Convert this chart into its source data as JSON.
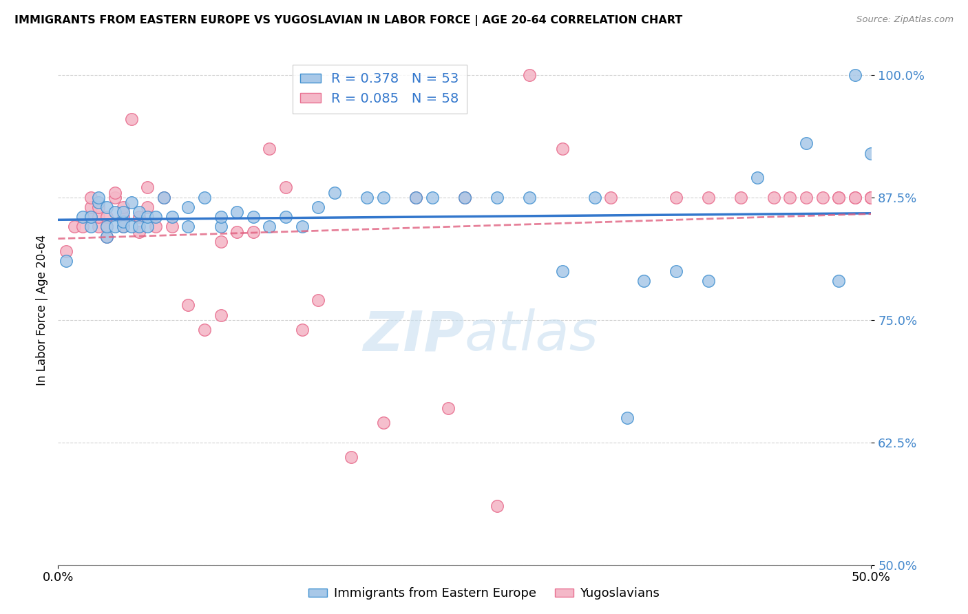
{
  "title": "IMMIGRANTS FROM EASTERN EUROPE VS YUGOSLAVIAN IN LABOR FORCE | AGE 20-64 CORRELATION CHART",
  "source": "Source: ZipAtlas.com",
  "ylabel": "In Labor Force | Age 20-64",
  "xlim": [
    0.0,
    0.5
  ],
  "ylim": [
    0.5,
    1.02
  ],
  "yticks": [
    0.5,
    0.625,
    0.75,
    0.875,
    1.0
  ],
  "ytick_labels": [
    "50.0%",
    "62.5%",
    "75.0%",
    "87.5%",
    "100.0%"
  ],
  "xtick_positions": [
    0.0,
    0.5
  ],
  "xtick_labels": [
    "0.0%",
    "50.0%"
  ],
  "blue_R": "0.378",
  "blue_N": "53",
  "pink_R": "0.085",
  "pink_N": "58",
  "blue_fill": "#a8c8e8",
  "pink_fill": "#f4b8c8",
  "blue_edge": "#4090d0",
  "pink_edge": "#e87090",
  "blue_line_color": "#3377cc",
  "pink_line_color": "#e06080",
  "watermark_color": "#c8dff0",
  "blue_x": [
    0.005,
    0.015,
    0.02,
    0.02,
    0.025,
    0.025,
    0.03,
    0.03,
    0.03,
    0.035,
    0.035,
    0.04,
    0.04,
    0.04,
    0.045,
    0.045,
    0.05,
    0.05,
    0.055,
    0.055,
    0.06,
    0.065,
    0.07,
    0.08,
    0.08,
    0.09,
    0.1,
    0.1,
    0.11,
    0.12,
    0.13,
    0.14,
    0.15,
    0.16,
    0.17,
    0.19,
    0.2,
    0.22,
    0.23,
    0.25,
    0.27,
    0.29,
    0.31,
    0.33,
    0.35,
    0.36,
    0.38,
    0.4,
    0.43,
    0.46,
    0.48,
    0.49,
    0.5
  ],
  "blue_y": [
    0.81,
    0.855,
    0.845,
    0.855,
    0.87,
    0.875,
    0.835,
    0.845,
    0.865,
    0.845,
    0.86,
    0.845,
    0.85,
    0.86,
    0.845,
    0.87,
    0.845,
    0.86,
    0.845,
    0.855,
    0.855,
    0.875,
    0.855,
    0.845,
    0.865,
    0.875,
    0.845,
    0.855,
    0.86,
    0.855,
    0.845,
    0.855,
    0.845,
    0.865,
    0.88,
    0.875,
    0.875,
    0.875,
    0.875,
    0.875,
    0.875,
    0.875,
    0.8,
    0.875,
    0.65,
    0.79,
    0.8,
    0.79,
    0.895,
    0.93,
    0.79,
    1.0,
    0.92
  ],
  "pink_x": [
    0.005,
    0.01,
    0.015,
    0.02,
    0.02,
    0.02,
    0.025,
    0.025,
    0.025,
    0.03,
    0.03,
    0.03,
    0.035,
    0.035,
    0.04,
    0.04,
    0.04,
    0.045,
    0.05,
    0.05,
    0.055,
    0.055,
    0.06,
    0.065,
    0.07,
    0.08,
    0.09,
    0.1,
    0.1,
    0.11,
    0.12,
    0.13,
    0.14,
    0.15,
    0.16,
    0.18,
    0.2,
    0.22,
    0.24,
    0.25,
    0.27,
    0.29,
    0.31,
    0.34,
    0.38,
    0.4,
    0.42,
    0.44,
    0.45,
    0.46,
    0.47,
    0.48,
    0.48,
    0.49,
    0.49,
    0.5,
    0.5,
    0.5
  ],
  "pink_y": [
    0.82,
    0.845,
    0.845,
    0.855,
    0.865,
    0.875,
    0.845,
    0.855,
    0.865,
    0.835,
    0.845,
    0.855,
    0.875,
    0.88,
    0.845,
    0.855,
    0.865,
    0.955,
    0.84,
    0.855,
    0.865,
    0.885,
    0.845,
    0.875,
    0.845,
    0.765,
    0.74,
    0.755,
    0.83,
    0.84,
    0.84,
    0.925,
    0.885,
    0.74,
    0.77,
    0.61,
    0.645,
    0.875,
    0.66,
    0.875,
    0.56,
    1.0,
    0.925,
    0.875,
    0.875,
    0.875,
    0.875,
    0.875,
    0.875,
    0.875,
    0.875,
    0.875,
    0.875,
    0.875,
    0.875,
    0.875,
    0.875,
    0.875
  ]
}
